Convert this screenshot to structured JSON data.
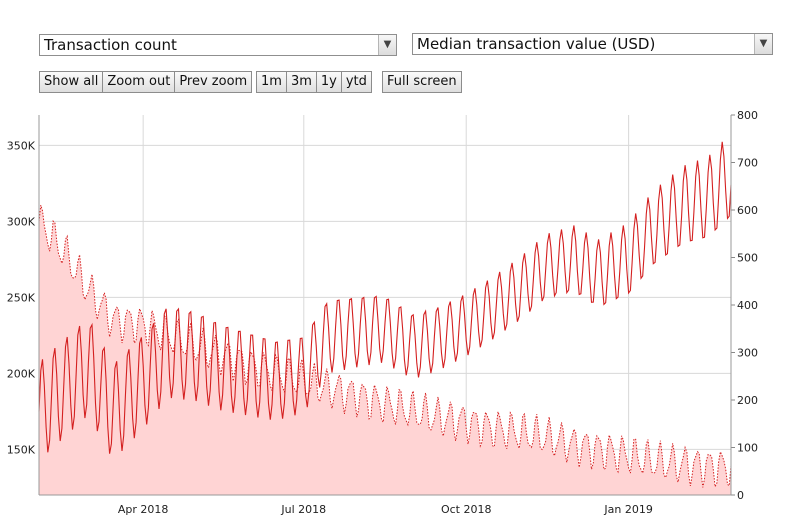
{
  "controls": {
    "left_select": "Transaction count",
    "right_select": "Median transaction value (USD)",
    "nav_buttons": [
      "Show all",
      "Zoom out",
      "Prev zoom"
    ],
    "range_buttons": [
      "1m",
      "3m",
      "1y",
      "ytd"
    ],
    "fullscreen_button": "Full screen"
  },
  "chart_data": {
    "type": "area",
    "x_range": [
      "2018-02-01",
      "2019-02-28"
    ],
    "x_tick_labels": [
      "Apr 2018",
      "Jul 2018",
      "Oct 2018",
      "Jan 2019"
    ],
    "y_left": {
      "label": "",
      "range": [
        120000,
        370000
      ],
      "ticks": [
        "150K",
        "200K",
        "250K",
        "300K",
        "350K"
      ]
    },
    "y_right": {
      "label": "",
      "range": [
        0,
        800
      ],
      "ticks": [
        "0",
        "100",
        "200",
        "300",
        "400",
        "500",
        "600",
        "700",
        "800"
      ]
    },
    "grid": true,
    "colors": {
      "line": "#d42020",
      "area": "#ffd4d4",
      "grid": "#d8d8d8"
    },
    "series": [
      {
        "axis": "left",
        "style": "solid line",
        "x": [
          "2018-02-01",
          "2018-02-15",
          "2018-03-01",
          "2018-03-15",
          "2018-04-01",
          "2018-04-15",
          "2018-05-01",
          "2018-05-15",
          "2018-06-01",
          "2018-06-15",
          "2018-07-01",
          "2018-07-15",
          "2018-08-01",
          "2018-08-15",
          "2018-09-01",
          "2018-09-15",
          "2018-10-01",
          "2018-10-15",
          "2018-11-01",
          "2018-11-15",
          "2018-12-01",
          "2018-12-15",
          "2019-01-01",
          "2019-01-15",
          "2019-02-01",
          "2019-02-15",
          "2019-02-28"
        ],
        "y": [
          175000,
          190000,
          205000,
          175000,
          195000,
          215000,
          212000,
          205000,
          200000,
          196000,
          200000,
          225000,
          228000,
          230000,
          218000,
          223000,
          232000,
          242000,
          256000,
          270000,
          275000,
          265000,
          275000,
          295000,
          310000,
          315000,
          330000
        ]
      },
      {
        "axis": "left",
        "style": "dotted line, filled area",
        "x": [
          "2018-02-01",
          "2018-02-15",
          "2018-03-01",
          "2018-03-15",
          "2018-04-01",
          "2018-04-15",
          "2018-05-01",
          "2018-05-15",
          "2018-06-01",
          "2018-06-15",
          "2018-07-01",
          "2018-07-15",
          "2018-08-01",
          "2018-08-15",
          "2018-09-01",
          "2018-09-15",
          "2018-10-01",
          "2018-10-15",
          "2018-11-01",
          "2018-11-15",
          "2018-12-01",
          "2018-12-15",
          "2019-01-01",
          "2019-01-15",
          "2019-02-01",
          "2019-02-15",
          "2019-02-28"
        ],
        "y": [
          300000,
          280000,
          255000,
          235000,
          232000,
          225000,
          218000,
          212000,
          205000,
          200000,
          195000,
          190000,
          185000,
          180000,
          175000,
          171000,
          168000,
          164000,
          161000,
          158000,
          153000,
          150000,
          146000,
          142000,
          140000,
          139000,
          138000
        ]
      }
    ]
  }
}
